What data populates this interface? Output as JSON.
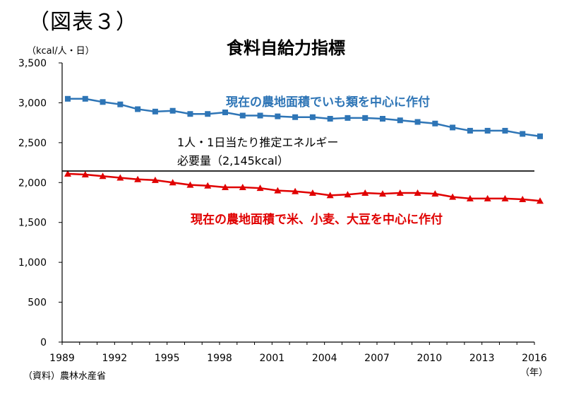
{
  "figure_label": "（図表３）",
  "chart_data": {
    "type": "line",
    "title": "食料自給力指標",
    "ylabel": "（kcal/人・日）",
    "xlabel": "（年）",
    "source": "（資料）農林水産省",
    "ylim": [
      0,
      3500
    ],
    "xlim": [
      1989,
      2016
    ],
    "y_ticks": [
      0,
      500,
      1000,
      1500,
      2000,
      2500,
      3000,
      3500
    ],
    "y_tick_labels": [
      "0",
      "500",
      "1,000",
      "1,500",
      "2,000",
      "2,500",
      "3,000",
      "3,500"
    ],
    "x_ticks": [
      1989,
      1992,
      1995,
      1998,
      2001,
      2004,
      2007,
      2010,
      2013,
      2016
    ],
    "x_tick_labels": [
      "1989",
      "1992",
      "1995",
      "1998",
      "2001",
      "2004",
      "2007",
      "2010",
      "2013",
      "2016"
    ],
    "grid": false,
    "x": [
      1989,
      1990,
      1991,
      1992,
      1993,
      1994,
      1995,
      1996,
      1997,
      1998,
      1999,
      2000,
      2001,
      2002,
      2003,
      2004,
      2005,
      2006,
      2007,
      2008,
      2009,
      2010,
      2011,
      2012,
      2013,
      2014,
      2015,
      2016
    ],
    "series": [
      {
        "name": "現在の農地面積でいも類を中心に作付",
        "color": "#2e75b6",
        "marker": "square",
        "values": [
          3050,
          3050,
          3010,
          2980,
          2920,
          2890,
          2900,
          2860,
          2860,
          2880,
          2840,
          2840,
          2830,
          2820,
          2820,
          2800,
          2810,
          2810,
          2800,
          2780,
          2760,
          2740,
          2690,
          2650,
          2650,
          2650,
          2610,
          2580
        ]
      },
      {
        "name": "現在の農地面積で米、小麦、大豆を中心に作付",
        "color": "#e00000",
        "marker": "triangle",
        "values": [
          2110,
          2100,
          2080,
          2060,
          2040,
          2030,
          2000,
          1970,
          1960,
          1940,
          1940,
          1930,
          1900,
          1890,
          1870,
          1840,
          1850,
          1870,
          1860,
          1870,
          1870,
          1860,
          1820,
          1800,
          1800,
          1800,
          1790,
          1770
        ]
      }
    ],
    "reference_line": {
      "value": 2145,
      "label_line1": "1人・1日当たり推定エネルギー",
      "label_line2": "必要量（2,145kcal）",
      "color": "#000000"
    }
  }
}
